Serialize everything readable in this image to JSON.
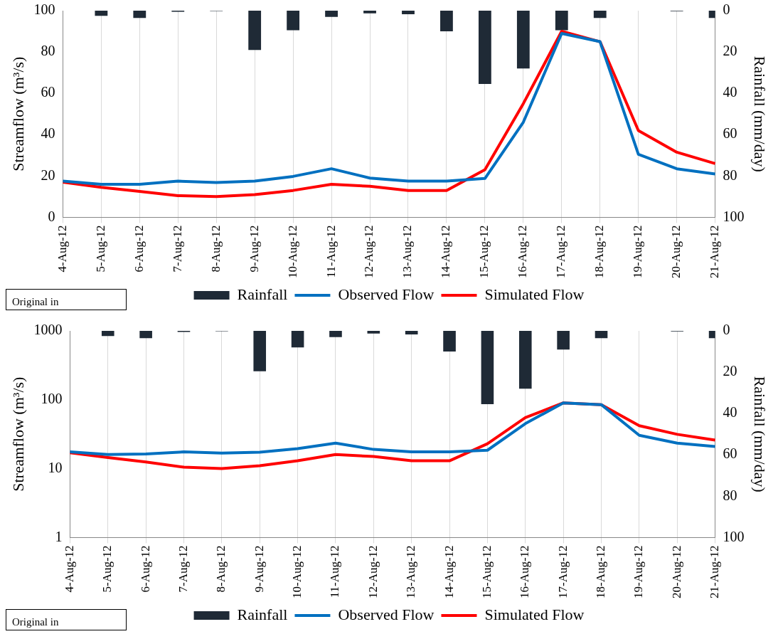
{
  "chart_data": [
    {
      "type": "bar",
      "categories": [
        "4-Aug-12",
        "5-Aug-12",
        "6-Aug-12",
        "7-Aug-12",
        "8-Aug-12",
        "9-Aug-12",
        "10-Aug-12",
        "11-Aug-12",
        "12-Aug-12",
        "13-Aug-12",
        "14-Aug-12",
        "15-Aug-12",
        "16-Aug-12",
        "17-Aug-12",
        "18-Aug-12",
        "19-Aug-12",
        "20-Aug-12",
        "21-Aug-12"
      ],
      "ylabel": "Streamflow (m³/s)",
      "y2label": "Rainfall (mm/day)",
      "ylim": [
        0,
        100
      ],
      "yticks": [
        0,
        20,
        40,
        60,
        80,
        100
      ],
      "y2lim": [
        100,
        0
      ],
      "y2ticks": [
        0,
        20,
        40,
        60,
        80,
        100
      ],
      "grid": "x",
      "legend": "bottom",
      "marker": "none",
      "line_style": "solid",
      "annotations": [
        "Original in"
      ],
      "series": [
        {
          "name": "Rainfall",
          "axis": "y2",
          "color": "#1f2a36",
          "values": [
            0,
            2.5,
            3.5,
            0.5,
            0.2,
            19,
            9.5,
            3,
            1.3,
            1.7,
            10,
            35.5,
            28,
            9.5,
            3.5,
            0,
            0.3,
            3.5
          ]
        },
        {
          "name": "Observed Flow",
          "type": "line",
          "color": "#0070c0",
          "values": [
            17.5,
            16,
            16,
            17.5,
            16.8,
            17.5,
            19.8,
            23.5,
            19,
            17.5,
            17.5,
            18.8,
            46,
            89,
            85,
            30.5,
            23.5,
            21
          ]
        },
        {
          "name": "Simulated Flow",
          "type": "line",
          "color": "#ff0000",
          "values": [
            17,
            14.5,
            12.5,
            10.5,
            10,
            11,
            13,
            16,
            15,
            13,
            13,
            23,
            55,
            90,
            85,
            42,
            31.5,
            26
          ]
        }
      ]
    },
    {
      "type": "bar",
      "categories": [
        "4-Aug-12",
        "5-Aug-12",
        "6-Aug-12",
        "7-Aug-12",
        "8-Aug-12",
        "9-Aug-12",
        "10-Aug-12",
        "11-Aug-12",
        "12-Aug-12",
        "13-Aug-12",
        "14-Aug-12",
        "15-Aug-12",
        "16-Aug-12",
        "17-Aug-12",
        "18-Aug-12",
        "19-Aug-12",
        "20-Aug-12",
        "21-Aug-12"
      ],
      "ylabel": "Streamflow (m³/s)",
      "y2label": "Rainfall (mm/day)",
      "ylim": [
        1,
        1000
      ],
      "yticks": [
        1,
        10,
        100,
        1000
      ],
      "log": "y",
      "y2lim": [
        100,
        0
      ],
      "y2ticks": [
        0,
        20,
        40,
        60,
        80,
        100
      ],
      "grid": "x",
      "legend": "bottom",
      "marker": "none",
      "line_style": "solid",
      "annotations": [
        "Original in"
      ],
      "series": [
        {
          "name": "Rainfall",
          "axis": "y2",
          "color": "#1f2a36",
          "values": [
            0,
            2.5,
            3.5,
            0.5,
            0.2,
            19.5,
            8,
            3,
            1.3,
            1.7,
            10,
            35.5,
            28,
            9,
            3.5,
            0,
            0.3,
            3.5
          ]
        },
        {
          "name": "Observed Flow",
          "type": "line",
          "color": "#0070c0",
          "values": [
            17.5,
            16,
            16.3,
            17.5,
            16.8,
            17.3,
            19.5,
            23.5,
            19,
            17.5,
            17.5,
            18.5,
            45,
            90,
            85,
            30.5,
            23.5,
            21
          ]
        },
        {
          "name": "Simulated Flow",
          "type": "line",
          "color": "#ff0000",
          "values": [
            17,
            14.5,
            12.5,
            10.5,
            10,
            11,
            13,
            16,
            15,
            13,
            13,
            23,
            55,
            90,
            85,
            42,
            31.5,
            26
          ]
        }
      ]
    }
  ]
}
